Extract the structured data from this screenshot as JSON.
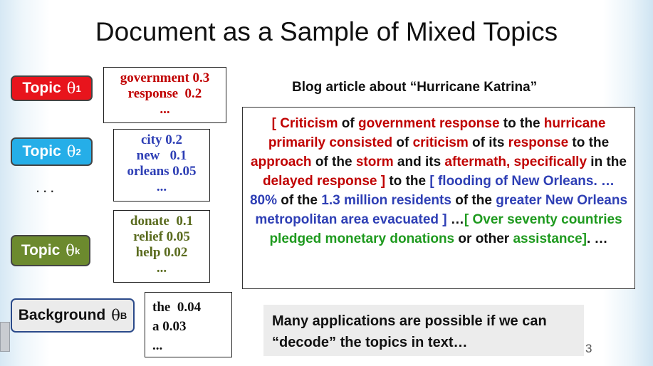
{
  "slide": {
    "title": "Document as a Sample of Mixed  Topics",
    "page_number": "3"
  },
  "topics": [
    {
      "label": "Topic",
      "theta": "θ",
      "sub": "1",
      "color": "#e8141c",
      "words": [
        "government 0.3",
        "response  0.2",
        "..."
      ]
    },
    {
      "label": "Topic",
      "theta": "θ",
      "sub": "2",
      "color": "#25aee8",
      "words": [
        "city 0.2",
        "new   0.1",
        "orleans 0.05",
        "..."
      ]
    },
    {
      "label": "Topic",
      "theta": "θ",
      "sub": "k",
      "color": "#6c8a2e",
      "words": [
        "donate  0.1",
        "relief 0.05",
        "help 0.02",
        "..."
      ]
    },
    {
      "label": "Background",
      "theta": "θ",
      "sub": "B",
      "color": "#ebebeb",
      "words": [
        "the  0.04",
        "a 0.03",
        "..."
      ]
    }
  ],
  "ellipsis": "...",
  "blog": {
    "title": "Blog article about “Hurricane Katrina”",
    "segments": [
      {
        "text": "[ Criticism",
        "c": "red"
      },
      {
        "text": " of ",
        "c": "blk"
      },
      {
        "text": "government response",
        "c": "red"
      },
      {
        "text": " to the ",
        "c": "blk"
      },
      {
        "text": "hurricane primarily consisted",
        "c": "red"
      },
      {
        "text": " of ",
        "c": "blk"
      },
      {
        "text": "criticism",
        "c": "red"
      },
      {
        "text": " of its ",
        "c": "blk"
      },
      {
        "text": "response",
        "c": "red"
      },
      {
        "text": " to the ",
        "c": "blk"
      },
      {
        "text": "approach",
        "c": "red"
      },
      {
        "text": " of the ",
        "c": "blk"
      },
      {
        "text": "storm",
        "c": "red"
      },
      {
        "text": " and its ",
        "c": "blk"
      },
      {
        "text": "aftermath, specifically",
        "c": "red"
      },
      {
        "text": " in the ",
        "c": "blk"
      },
      {
        "text": "delayed response ]",
        "c": "red"
      },
      {
        "text": " to the ",
        "c": "blk"
      },
      {
        "text": "[ flooding of New Orleans. … 80%",
        "c": "blue"
      },
      {
        "text": " of the ",
        "c": "blk"
      },
      {
        "text": "1.3 million residents",
        "c": "blue"
      },
      {
        "text": " of the ",
        "c": "blk"
      },
      {
        "text": "greater New Orleans metropolitan area evacuated ]",
        "c": "blue"
      },
      {
        "text": " …",
        "c": "blk"
      },
      {
        "text": "[ Over seventy countries pledged monetary donations",
        "c": "green"
      },
      {
        "text": " or other ",
        "c": "blk"
      },
      {
        "text": "assistance]",
        "c": "green"
      },
      {
        "text": ". …",
        "c": "blk"
      }
    ]
  },
  "note": {
    "line1": "Many applications are possible if we can",
    "line2": "“decode” the topics in text…"
  }
}
